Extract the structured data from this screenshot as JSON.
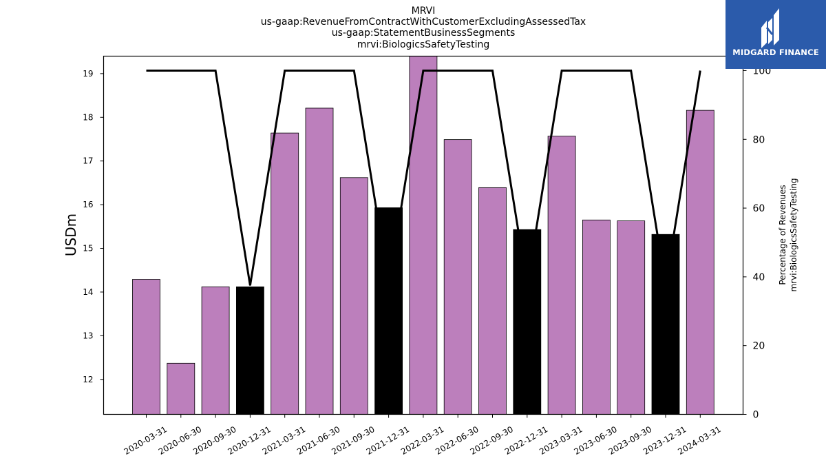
{
  "titles": [
    "MRVI",
    "us-gaap:RevenueFromContractWithCustomerExcludingAssessedTax",
    "us-gaap:StatementBusinessSegments",
    "mrvi:BiologicsSafetyTesting"
  ],
  "logo": {
    "text": "MIDGARD FINANCE",
    "color": "#2b5bab"
  },
  "chart_data": {
    "type": "bar",
    "categories": [
      "2020-03-31",
      "2020-06-30",
      "2020-09-30",
      "2020-12-31",
      "2021-03-31",
      "2021-06-30",
      "2021-09-30",
      "2021-12-31",
      "2022-03-31",
      "2022-06-30",
      "2022-09-30",
      "2022-12-31",
      "2023-03-31",
      "2023-06-30",
      "2023-09-30",
      "2023-12-31",
      "2024-03-31"
    ],
    "values": [
      14.29,
      12.37,
      14.12,
      14.12,
      17.64,
      18.21,
      16.62,
      15.93,
      19.4,
      17.49,
      16.39,
      15.43,
      17.57,
      15.65,
      15.63,
      15.32,
      18.16
    ],
    "bar_colors": [
      "#bc7fbc",
      "#bc7fbc",
      "#bc7fbc",
      "#000000",
      "#bc7fbc",
      "#bc7fbc",
      "#bc7fbc",
      "#000000",
      "#bc7fbc",
      "#bc7fbc",
      "#bc7fbc",
      "#000000",
      "#bc7fbc",
      "#bc7fbc",
      "#bc7fbc",
      "#000000",
      "#bc7fbc"
    ],
    "line_values": [
      100,
      100,
      100,
      37.5,
      100,
      100,
      100,
      37.5,
      100,
      100,
      100,
      37.5,
      100,
      100,
      100,
      37.5,
      100
    ],
    "ylabel": "USDm",
    "ylim": [
      11.2,
      19.4
    ],
    "yticks": [
      12,
      13,
      14,
      15,
      16,
      17,
      18,
      19
    ],
    "y2label": [
      "Percentage of Revenues",
      "mrvi:BiologicsSafetyTesting"
    ],
    "y2lim": [
      0,
      104.2
    ],
    "y2ticks": [
      0,
      20,
      40,
      60,
      80,
      100
    ],
    "grid": false,
    "line_color": "#000000"
  }
}
